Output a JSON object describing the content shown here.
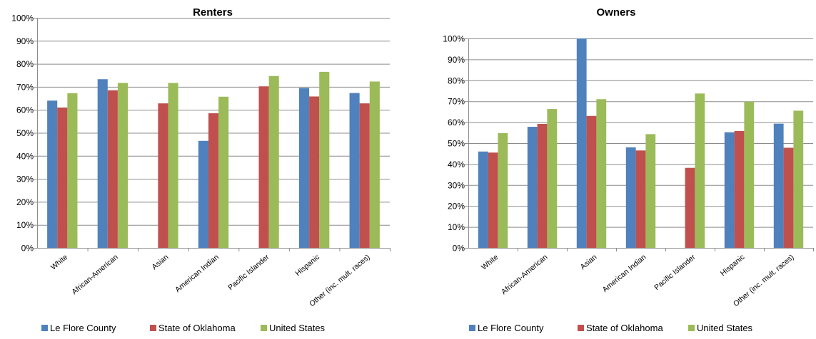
{
  "colors": {
    "le_flore": "#4f81bd",
    "oklahoma": "#c0504d",
    "united_states": "#9bbb59",
    "gridline": "#8c8c8c"
  },
  "chart_data": [
    {
      "type": "bar",
      "title": "Renters",
      "categories": [
        "White",
        "African-American",
        "Asian",
        "American Indian",
        "Pacific Islander",
        "Hispanic",
        "Other (inc. mult. races)"
      ],
      "series": [
        {
          "name": "Le Flore County",
          "values": [
            64,
            73.3,
            null,
            46.5,
            null,
            69.5,
            67.3
          ]
        },
        {
          "name": "State of Oklahoma",
          "values": [
            61,
            68.5,
            62.8,
            58.5,
            70.2,
            65.8,
            62.8
          ]
        },
        {
          "name": "United States",
          "values": [
            67.2,
            71.7,
            71.7,
            65.7,
            74.7,
            76.5,
            72.3
          ]
        }
      ],
      "ylim": [
        0,
        100
      ],
      "yticks": [
        "0%",
        "10%",
        "20%",
        "30%",
        "40%",
        "50%",
        "60%",
        "70%",
        "80%",
        "90%",
        "100%"
      ],
      "grid": true,
      "legend_position": "bottom"
    },
    {
      "type": "bar",
      "title": "Owners",
      "categories": [
        "White",
        "African-American",
        "Asian",
        "American Indian",
        "Pacific Islander",
        "Hispanic",
        "Other (inc. mult. races)"
      ],
      "series": [
        {
          "name": "Le Flore County",
          "values": [
            46,
            57.8,
            100,
            48,
            null,
            55.2,
            59.3
          ]
        },
        {
          "name": "State of Oklahoma",
          "values": [
            45.5,
            59.2,
            63,
            46.5,
            38.2,
            55.8,
            47.8
          ]
        },
        {
          "name": "United States",
          "values": [
            54.8,
            66.3,
            71,
            54.3,
            73.7,
            69.8,
            65.5
          ]
        }
      ],
      "ylim": [
        0,
        100
      ],
      "yticks": [
        "0%",
        "10%",
        "20%",
        "30%",
        "40%",
        "50%",
        "60%",
        "70%",
        "80%",
        "90%",
        "100%"
      ],
      "grid": true,
      "legend_position": "bottom"
    }
  ]
}
